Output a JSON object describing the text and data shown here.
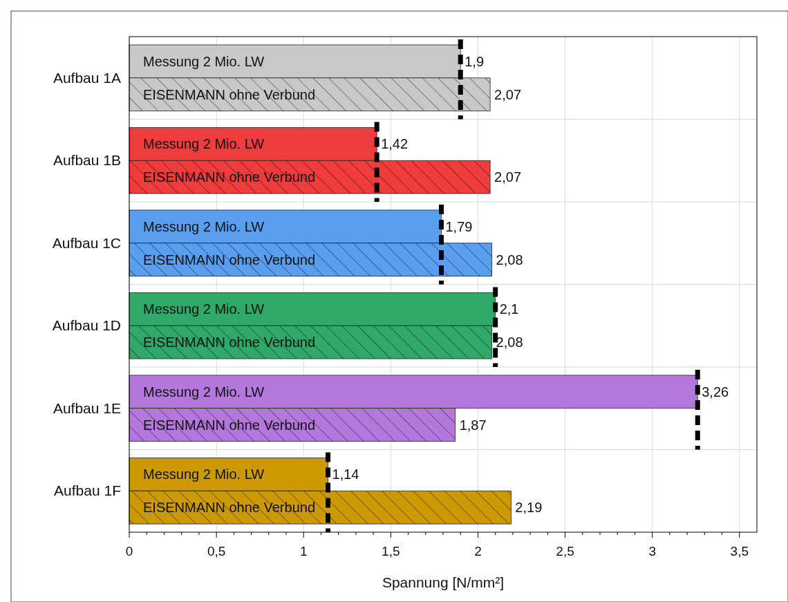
{
  "chart_data": {
    "type": "bar",
    "orientation": "horizontal",
    "xlabel": "Spannung [N/mm²]",
    "categories": [
      "Aufbau 1A",
      "Aufbau 1B",
      "Aufbau 1C",
      "Aufbau 1D",
      "Aufbau 1E",
      "Aufbau 1F"
    ],
    "series": [
      {
        "name": "Messung 2 Mio. LW",
        "colors": [
          "#c8c8c8",
          "#f03c3c",
          "#5a9ef0",
          "#30a868",
          "#b478dc",
          "#cc9900"
        ],
        "values": [
          1.9,
          1.42,
          1.79,
          2.1,
          3.26,
          1.14
        ],
        "value_labels": [
          "1,9",
          "1,42",
          "1,79",
          "2,1",
          "3,26",
          "1,14"
        ]
      },
      {
        "name": "EISENMANN ohne Verbund",
        "colors": [
          "#c8c8c8",
          "#f03c3c",
          "#5a9ef0",
          "#30a868",
          "#b478dc",
          "#cc9900"
        ],
        "values": [
          2.07,
          2.07,
          2.08,
          2.08,
          1.87,
          2.19
        ],
        "value_labels": [
          "2,07",
          "2,07",
          "2,08",
          "2,08",
          "1,87",
          "2,19"
        ]
      }
    ],
    "ref_lines": [
      {
        "axis": "x",
        "value": 1.9,
        "color": "#000000",
        "line_style": "dashed"
      },
      {
        "axis": "x",
        "value": 1.42,
        "color": "#000000",
        "line_style": "dashed"
      },
      {
        "axis": "x",
        "value": 1.79,
        "color": "#000000",
        "line_style": "dashed"
      },
      {
        "axis": "x",
        "value": 2.1,
        "color": "#000000",
        "line_style": "dashed"
      },
      {
        "axis": "x",
        "value": 3.26,
        "color": "#000000",
        "line_style": "dashed"
      },
      {
        "axis": "x",
        "value": 1.14,
        "color": "#000000",
        "line_style": "dashed"
      }
    ],
    "xlim": [
      0,
      3.6
    ],
    "xticks": [
      0,
      {
        "value": 0.5,
        "label": "0,5"
      },
      1,
      {
        "value": 1.5,
        "label": "1,5"
      },
      2,
      {
        "value": 2.5,
        "label": "2,5"
      },
      3,
      {
        "value": 3.5,
        "label": "3,5"
      }
    ],
    "grid": "x"
  }
}
